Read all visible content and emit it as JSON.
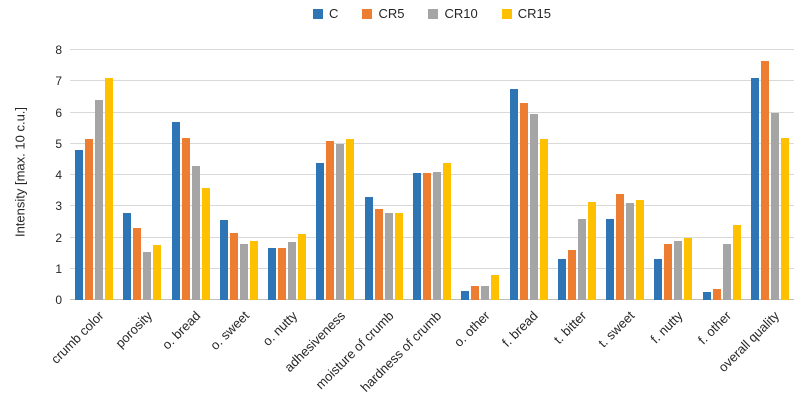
{
  "chart_data": {
    "type": "bar",
    "title": "",
    "xlabel": "",
    "ylabel": "Intensity [max. 10 c.u.]",
    "ylim": [
      0,
      8
    ],
    "ytick_step": 1,
    "grid": true,
    "legend_position": "top-center",
    "categories": [
      "crumb color",
      "porosity",
      "o. bread",
      "o. sweet",
      "o. nutty",
      "adhesiveness",
      "moisture of crumb",
      "hardness of crumb",
      "o. other",
      "f. bread",
      "t. bitter",
      "t. sweet",
      "f. nutty",
      "f. other",
      "overall quality"
    ],
    "series": [
      {
        "name": "C",
        "color": "#2E75B6",
        "values": [
          4.8,
          2.8,
          5.7,
          2.55,
          1.65,
          4.4,
          3.3,
          4.05,
          0.3,
          6.75,
          1.3,
          2.6,
          1.3,
          0.25,
          7.1
        ]
      },
      {
        "name": "CR5",
        "color": "#ED7D31",
        "values": [
          5.15,
          2.3,
          5.2,
          2.15,
          1.65,
          5.1,
          2.9,
          4.05,
          0.45,
          6.3,
          1.6,
          3.4,
          1.8,
          0.35,
          7.65
        ]
      },
      {
        "name": "CR10",
        "color": "#A5A5A5",
        "values": [
          6.4,
          1.55,
          4.3,
          1.8,
          1.85,
          5.0,
          2.8,
          4.1,
          0.45,
          5.95,
          2.6,
          3.1,
          1.9,
          1.8,
          6.0
        ]
      },
      {
        "name": "CR15",
        "color": "#FFC000",
        "values": [
          7.1,
          1.75,
          3.6,
          1.9,
          2.1,
          5.15,
          2.8,
          4.4,
          0.8,
          5.15,
          3.15,
          3.2,
          2.0,
          2.4,
          5.2
        ]
      }
    ]
  },
  "colors": {
    "gridline": "#D9D9D9",
    "axis_line": "#BFBFBF",
    "text": "#262626",
    "background": "#FFFFFF"
  }
}
